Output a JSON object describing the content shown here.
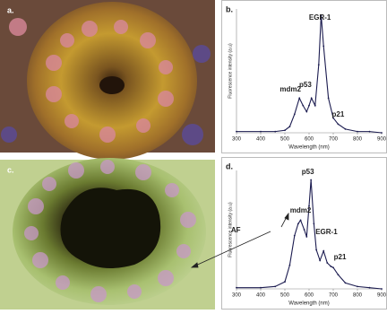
{
  "panels": [
    {
      "label": "a."
    },
    {
      "label": "c."
    }
  ],
  "chart_data": [
    {
      "type": "line",
      "panel_label": "b.",
      "x_label": "Wavelength (nm)",
      "y_label": "Fluorescence intensity (a.u)",
      "x": [
        300,
        400,
        460,
        500,
        520,
        540,
        560,
        575,
        590,
        600,
        610,
        625,
        640,
        650,
        660,
        680,
        700,
        720,
        750,
        800,
        850,
        900
      ],
      "values": [
        0.01,
        0.01,
        0.01,
        0.02,
        0.05,
        0.15,
        0.28,
        0.22,
        0.17,
        0.22,
        0.28,
        0.22,
        0.55,
        0.95,
        0.7,
        0.28,
        0.12,
        0.07,
        0.03,
        0.01,
        0.01,
        0
      ],
      "color": "#1c1c50",
      "xlim": [
        300,
        900
      ],
      "ylim": [
        0,
        1
      ],
      "xticks": [
        300,
        400,
        500,
        600,
        700,
        800,
        900
      ],
      "annotations": [
        "mdm2",
        "p53",
        "EGR-1",
        "p21"
      ]
    },
    {
      "type": "line",
      "panel_label": "d.",
      "x_label": "Wavelength (nm)",
      "y_label": "Fluorescence intensity (a.u)",
      "x": [
        300,
        400,
        460,
        500,
        520,
        540,
        555,
        565,
        580,
        590,
        600,
        608,
        620,
        630,
        645,
        660,
        675,
        690,
        700,
        720,
        750,
        800,
        850,
        900
      ],
      "values": [
        0.01,
        0.01,
        0.02,
        0.06,
        0.2,
        0.45,
        0.55,
        0.58,
        0.5,
        0.44,
        0.7,
        0.92,
        0.55,
        0.33,
        0.24,
        0.32,
        0.22,
        0.19,
        0.18,
        0.12,
        0.05,
        0.02,
        0.01,
        0
      ],
      "color": "#1c1c50",
      "xlim": [
        300,
        900
      ],
      "ylim": [
        0,
        1
      ],
      "xticks": [
        300,
        400,
        500,
        600,
        700,
        800,
        900
      ],
      "annotations": [
        "mdm2",
        "p53",
        "EGR-1",
        "p21",
        "AF"
      ]
    }
  ]
}
